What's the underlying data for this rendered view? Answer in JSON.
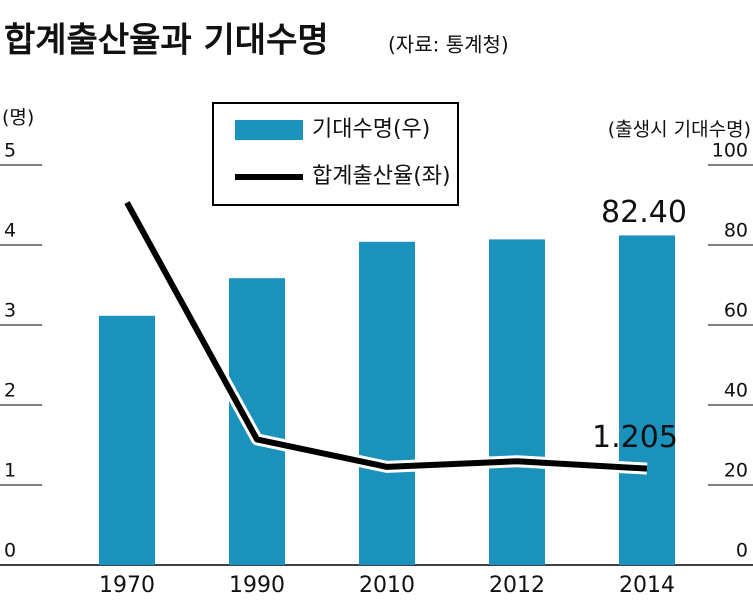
{
  "chart_data": {
    "type": "bar-line",
    "title": "합계출산율과 기대수명",
    "subtitle": "(자료: 통계청)",
    "y_label": "(명)",
    "y2_label": "(출생시 기대수명)",
    "categories": [
      "1970",
      "1990",
      "2010",
      "2012",
      "2014"
    ],
    "series": [
      {
        "name": "기대수명(우)",
        "type": "bar",
        "axis": "y2",
        "color": "#1b92bb",
        "values": [
          62.3,
          71.7,
          80.8,
          81.4,
          82.4
        ],
        "value_labels": [
          null,
          null,
          null,
          null,
          "82.40"
        ]
      },
      {
        "name": "합계출산율(좌)",
        "type": "line",
        "color": "#000000",
        "values": [
          4.53,
          1.57,
          1.226,
          1.297,
          1.205
        ],
        "value_labels": [
          null,
          null,
          null,
          null,
          "1.205"
        ]
      }
    ],
    "ylim": [
      0,
      5
    ],
    "yticks": [
      0,
      1,
      2,
      3,
      4,
      5
    ],
    "y2lim": [
      0,
      100
    ],
    "y2ticks": [
      0,
      20,
      40,
      60,
      80,
      100
    ]
  }
}
